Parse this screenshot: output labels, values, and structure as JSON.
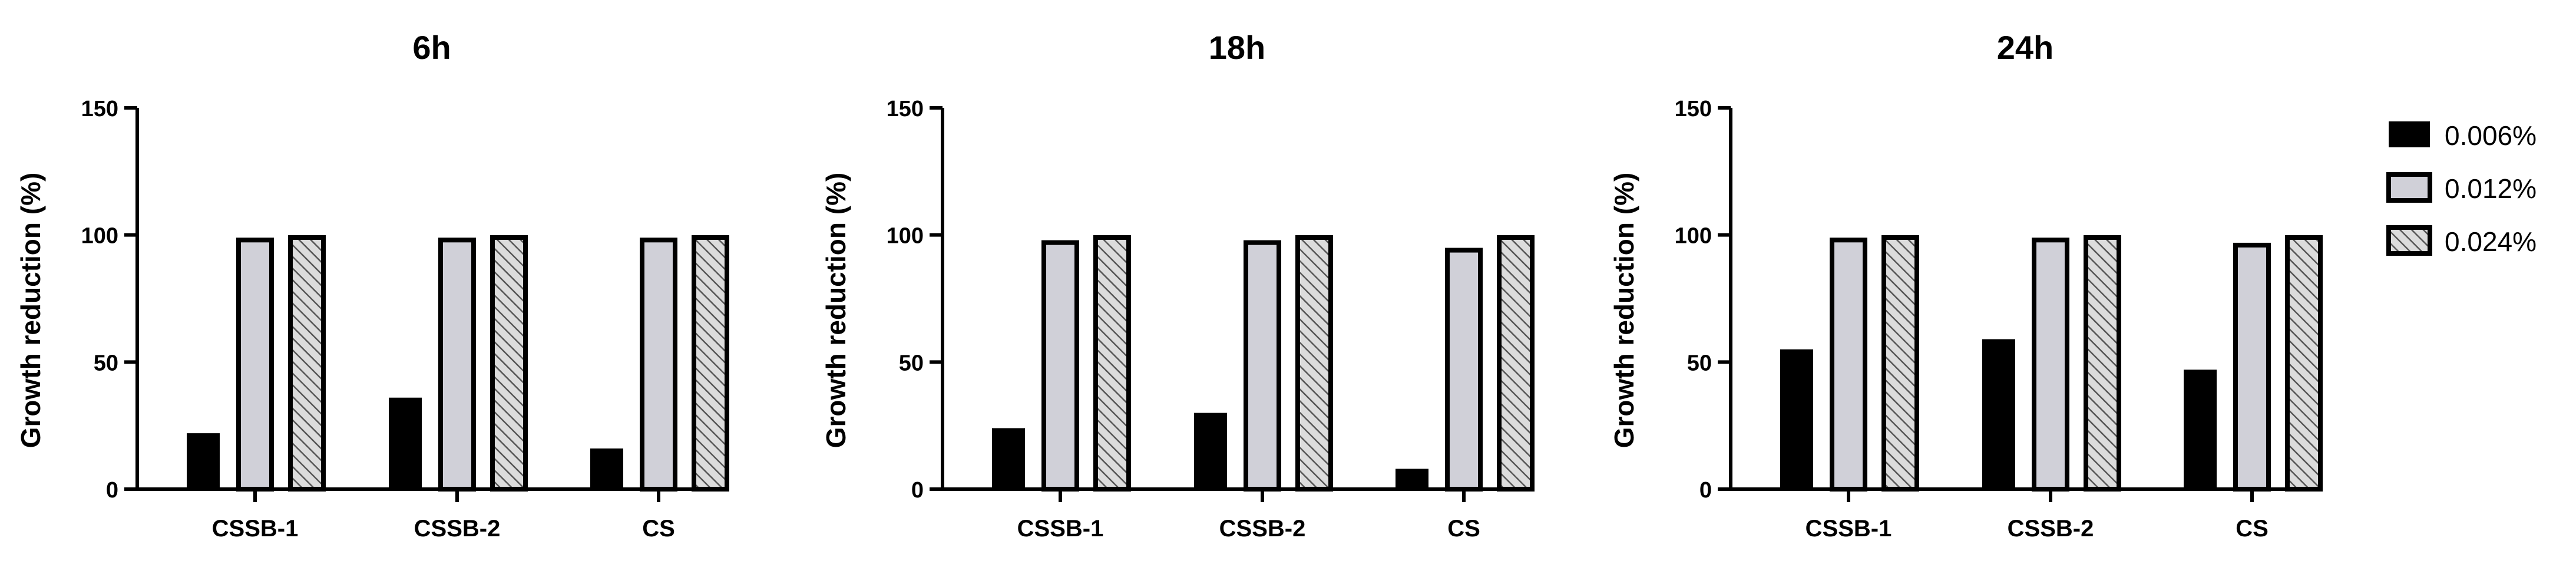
{
  "chart_data": [
    {
      "type": "bar",
      "title": "6h",
      "ylabel": "Growth reduction (%)",
      "ylim": [
        0,
        150
      ],
      "yticks": [
        0,
        50,
        100,
        150
      ],
      "categories": [
        "CSSB-1",
        "CSSB-2",
        "CS"
      ],
      "series": [
        {
          "name": "0.006%",
          "values": [
            22,
            36,
            16
          ]
        },
        {
          "name": "0.012%",
          "values": [
            98,
            98,
            98
          ]
        },
        {
          "name": "0.024%",
          "values": [
            99,
            99,
            99
          ]
        }
      ]
    },
    {
      "type": "bar",
      "title": "18h",
      "ylabel": "Growth reduction (%)",
      "ylim": [
        0,
        150
      ],
      "yticks": [
        0,
        50,
        100,
        150
      ],
      "categories": [
        "CSSB-1",
        "CSSB-2",
        "CS"
      ],
      "series": [
        {
          "name": "0.006%",
          "values": [
            24,
            30,
            8
          ]
        },
        {
          "name": "0.012%",
          "values": [
            97,
            97,
            94
          ]
        },
        {
          "name": "0.024%",
          "values": [
            99,
            99,
            99
          ]
        }
      ]
    },
    {
      "type": "bar",
      "title": "24h",
      "ylabel": "Growth reduction (%)",
      "ylim": [
        0,
        150
      ],
      "yticks": [
        0,
        50,
        100,
        150
      ],
      "categories": [
        "CSSB-1",
        "CSSB-2",
        "CS"
      ],
      "series": [
        {
          "name": "0.006%",
          "values": [
            55,
            59,
            47
          ]
        },
        {
          "name": "0.012%",
          "values": [
            98,
            98,
            96
          ]
        },
        {
          "name": "0.024%",
          "values": [
            99,
            99,
            99
          ]
        }
      ]
    }
  ],
  "legend": {
    "placement": "right",
    "items": [
      {
        "label": "0.006%",
        "fill": "#000000",
        "pattern": "solid"
      },
      {
        "label": "0.012%",
        "fill": "#d0d0d8",
        "pattern": "solid"
      },
      {
        "label": "0.024%",
        "fill": "#d8d8d8",
        "pattern": "diagonal-hatch"
      }
    ]
  }
}
